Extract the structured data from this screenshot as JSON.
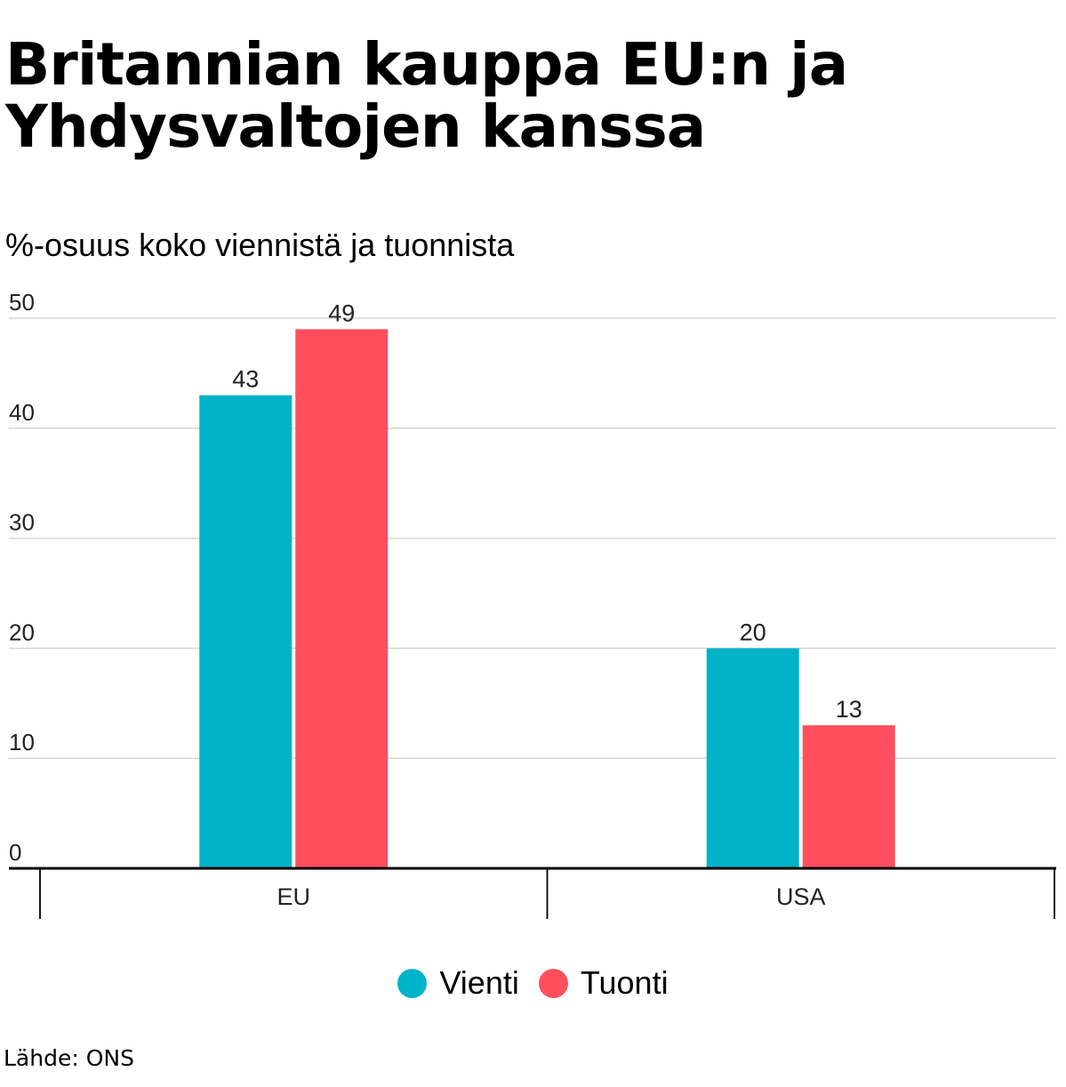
{
  "chart_data": {
    "type": "bar",
    "title": "Britannian kauppa EU:n ja Yhdysvaltojen kanssa",
    "subtitle": "%-osuus koko viennistä ja tuonnista",
    "categories": [
      "EU",
      "USA"
    ],
    "series": [
      {
        "name": "Vienti",
        "color": "#00b3c8",
        "values": [
          43,
          20
        ]
      },
      {
        "name": "Tuonti",
        "color": "#ff4f5e",
        "values": [
          49,
          13
        ]
      }
    ],
    "xlabel": "",
    "ylabel": "",
    "ylim": [
      0,
      50
    ],
    "yticks": [
      0,
      10,
      20,
      30,
      40,
      50
    ],
    "grid": true,
    "legend_position": "bottom-center",
    "data_labels": true,
    "source": "Lähde: ONS"
  }
}
